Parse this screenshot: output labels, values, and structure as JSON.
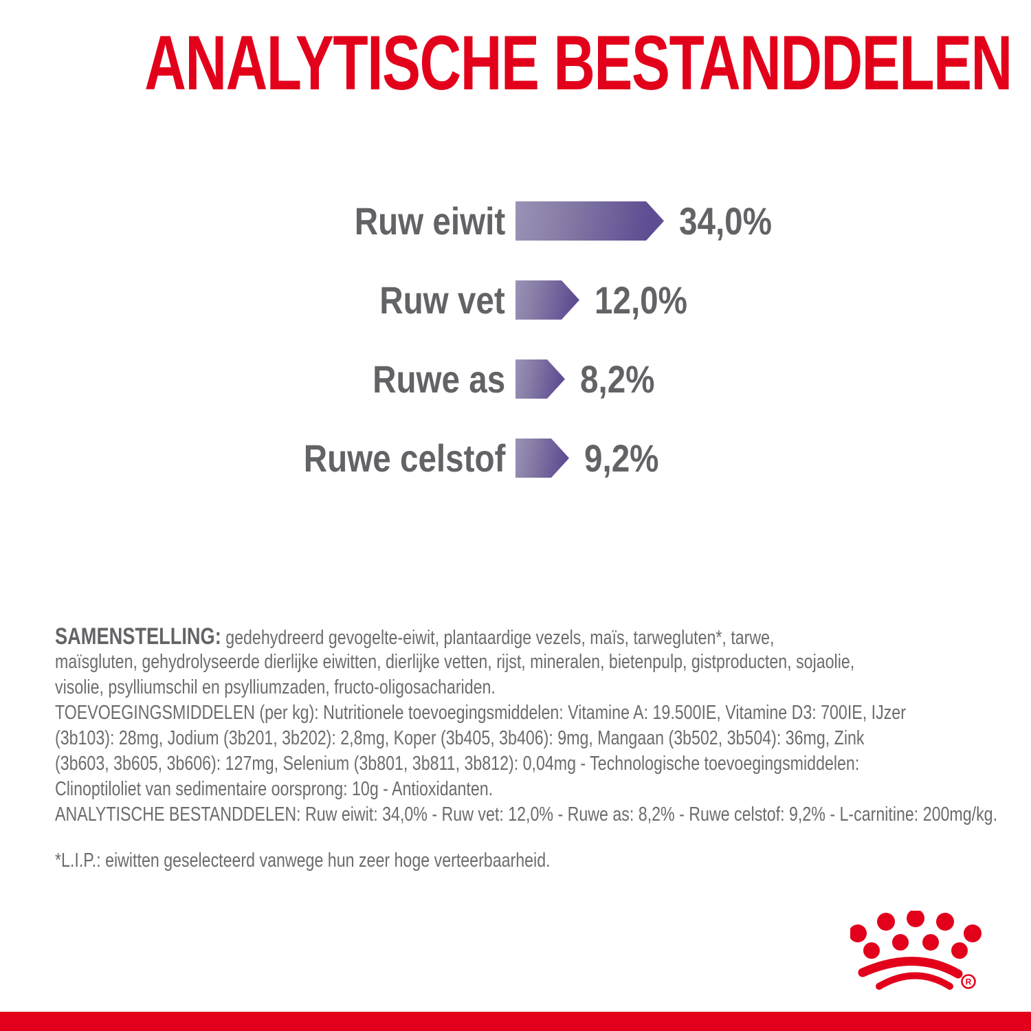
{
  "title": "ANALYTISCHE BESTANDDELEN",
  "colors": {
    "brand_red": "#e2001a",
    "bar_gradient_start": "#9c92b6",
    "bar_gradient_end": "#5e4d92",
    "text_gray": "#6b6c6e",
    "chart_text_gray": "#626366"
  },
  "chart_data": {
    "type": "bar",
    "orientation": "horizontal",
    "title": "ANALYTISCHE BESTANDDELEN",
    "categories": [
      "Ruw eiwit",
      "Ruw vet",
      "Ruwe as",
      "Ruwe celstof"
    ],
    "values": [
      34.0,
      12.0,
      8.2,
      9.2
    ],
    "value_labels": [
      "34,0%",
      "12,0%",
      "8,2%",
      "9,2%"
    ],
    "unit": "%",
    "xlabel": "",
    "ylabel": "",
    "grid": "off",
    "legend": "none",
    "bar_style": "arrow-pointed gradient purple"
  },
  "composition": {
    "label": "SAMENSTELLING:",
    "line1_rest": " gedehydreerd gevogelte-eiwit, plantaardige vezels, maïs, tarwegluten*, tarwe,",
    "line2": "maïsgluten, gehydrolyseerde dierlijke eiwitten, dierlijke vetten, rijst, mineralen, bietenpulp, gistproducten, sojaolie,",
    "line3": "visolie, psylliumschil en psylliumzaden, fructo-oligosachariden."
  },
  "additives": {
    "line1": "TOEVOEGINGSMIDDELEN (per kg): Nutritionele toevoegingsmiddelen: Vitamine A: 19.500IE, Vitamine D3: 700IE, IJzer",
    "line2": "(3b103): 28mg, Jodium (3b201, 3b202): 2,8mg, Koper (3b405, 3b406): 9mg, Mangaan (3b502, 3b504): 36mg, Zink",
    "line3": "(3b603, 3b605, 3b606): 127mg, Selenium (3b801, 3b811, 3b812): 0,04mg - Technologische toevoegingsmiddelen:",
    "line4": "Clinoptiloliet van sedimentaire oorsprong: 10g - Antioxidanten."
  },
  "analytical_summary": "ANALYTISCHE BESTANDDELEN: Ruw eiwit: 34,0% - Ruw vet: 12,0% - Ruwe as: 8,2% - Ruwe celstof: 9,2% - L-carnitine: 200mg/kg.",
  "lip_note": "*L.I.P.: eiwitten geselecteerd vanwege hun zeer hoge verteerbaarheid.",
  "logo": {
    "name": "royal-canin-crown",
    "registered_letter": "R"
  }
}
